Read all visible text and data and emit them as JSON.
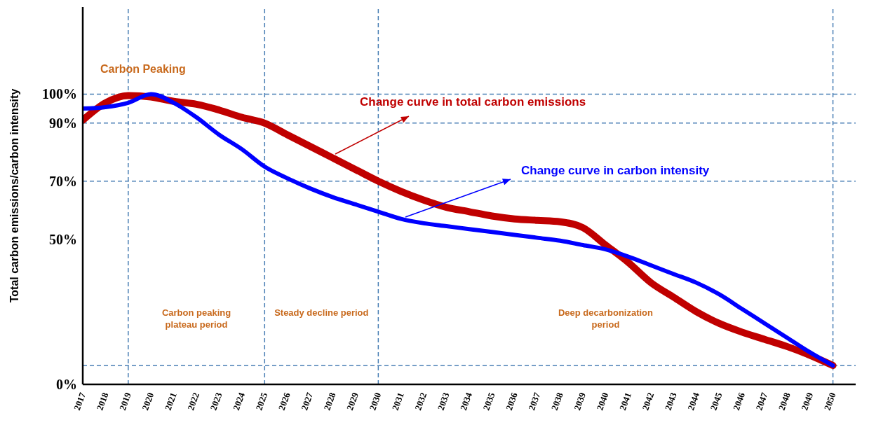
{
  "chart_data": {
    "type": "line",
    "ylabel": "Total carbon emissions/carbon intensity",
    "x": [
      2017,
      2018,
      2019,
      2020,
      2021,
      2022,
      2023,
      2024,
      2025,
      2026,
      2027,
      2028,
      2029,
      2030,
      2031,
      2032,
      2033,
      2034,
      2035,
      2036,
      2037,
      2038,
      2039,
      2040,
      2041,
      2042,
      2043,
      2044,
      2045,
      2046,
      2047,
      2048,
      2049,
      2050
    ],
    "series": [
      {
        "name": "Change curve in total carbon emissions",
        "color": "#c00000",
        "values": [
          91,
          97,
          99.5,
          99,
          97.5,
          96.5,
          94.5,
          92,
          90,
          86,
          82,
          78,
          74,
          70,
          66.5,
          63.5,
          61,
          59.5,
          58,
          57,
          56.5,
          56,
          54,
          48,
          42,
          35,
          30,
          25,
          21,
          18,
          15.5,
          13,
          10,
          6.5
        ]
      },
      {
        "name": "Change curve in carbon intensity",
        "color": "#0000ff",
        "values": [
          95,
          95.5,
          97,
          100,
          97,
          92,
          86,
          81,
          75,
          71,
          67.5,
          64.5,
          62,
          59.5,
          57,
          55.5,
          54.5,
          53.5,
          52.5,
          51.5,
          50.5,
          49.5,
          48,
          46.5,
          44,
          41,
          38,
          35,
          31,
          26,
          21,
          16,
          11,
          6.5
        ]
      }
    ],
    "xlim": [
      2017,
      2051
    ],
    "xticks": [
      2017,
      2018,
      2019,
      2020,
      2021,
      2022,
      2023,
      2024,
      2025,
      2026,
      2027,
      2028,
      2029,
      2030,
      2031,
      2032,
      2033,
      2034,
      2035,
      2036,
      2037,
      2038,
      2039,
      2040,
      2041,
      2042,
      2043,
      2044,
      2045,
      2046,
      2047,
      2048,
      2049,
      2050
    ],
    "ylim": [
      0,
      130
    ],
    "yticks": [
      {
        "value": 0,
        "label": "0%"
      },
      {
        "value": 50,
        "label": "50%"
      },
      {
        "value": 70,
        "label": "70%"
      },
      {
        "value": 90,
        "label": "90%"
      },
      {
        "value": 100,
        "label": "100%"
      }
    ],
    "ref_lines": [
      {
        "axis": "x",
        "value": 2019,
        "color": "#4a7fb5",
        "line_style": "dashed"
      },
      {
        "axis": "x",
        "value": 2025,
        "color": "#4a7fb5",
        "line_style": "dashed"
      },
      {
        "axis": "x",
        "value": 2030,
        "color": "#4a7fb5",
        "line_style": "dashed"
      },
      {
        "axis": "x",
        "value": 2050,
        "color": "#4a7fb5",
        "line_style": "dashed"
      },
      {
        "axis": "y",
        "value": 100,
        "color": "#4a7fb5",
        "line_style": "dashed"
      },
      {
        "axis": "y",
        "value": 90,
        "color": "#4a7fb5",
        "line_style": "dashed"
      },
      {
        "axis": "y",
        "value": 70,
        "color": "#4a7fb5",
        "line_style": "dashed"
      },
      {
        "axis": "y",
        "value": 6.5,
        "color": "#4a7fb5",
        "line_style": "dashed"
      }
    ],
    "annotations": [
      "Carbon Peaking",
      "Carbon peaking plateau period",
      "Steady decline period",
      "Deep decarbonization period"
    ],
    "grid": false,
    "legend": "top right",
    "marker": "none",
    "line_style": "solid"
  }
}
